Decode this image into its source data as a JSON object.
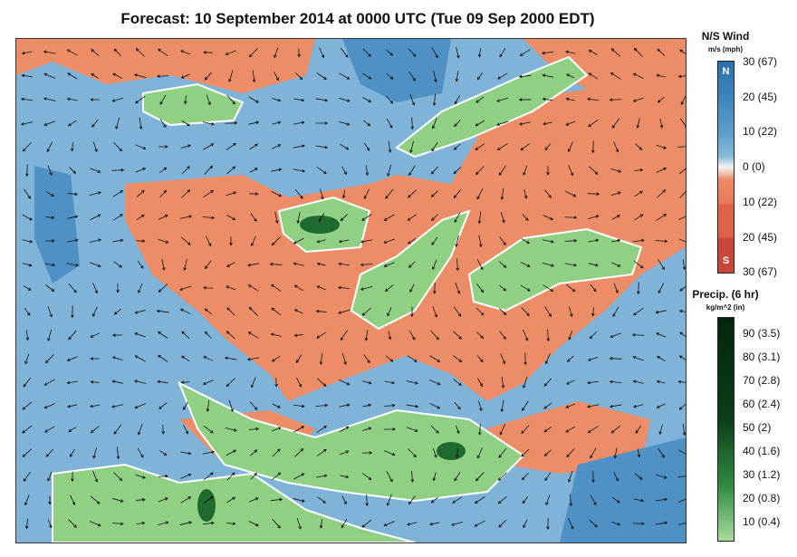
{
  "title": "Forecast: 10 September 2014 at 0000 UTC (Tue 09 Sep 2000 EDT)",
  "wind_legend": {
    "title": "N/S Wind",
    "units": "m/s (mph)",
    "north": "N",
    "south": "S",
    "ticks": [
      "30 (67)",
      "20 (45)",
      "10 (22)",
      "0 (0)",
      "10 (22)",
      "20 (45)",
      "30 (67)"
    ],
    "colors": [
      "#2c6fad",
      "#3d86be",
      "#5a9ccb",
      "#86bbd9",
      "#f4f2f0",
      "#ed8a64",
      "#dc6249",
      "#c9473a"
    ]
  },
  "precip_legend": {
    "title": "Precip. (6 hr)",
    "units": "kg/m^2 (in)",
    "ticks": [
      "90 (3.5)",
      "80 (3.1)",
      "70 (2.8)",
      "60 (2.4)",
      "50 (2)",
      "40 (1.6)",
      "30 (1.2)",
      "20 (0.8)",
      "10 (0.4)"
    ],
    "colors": [
      "#a8dc9a",
      "#3c9a4f",
      "#11501f",
      "#03260b"
    ]
  }
}
